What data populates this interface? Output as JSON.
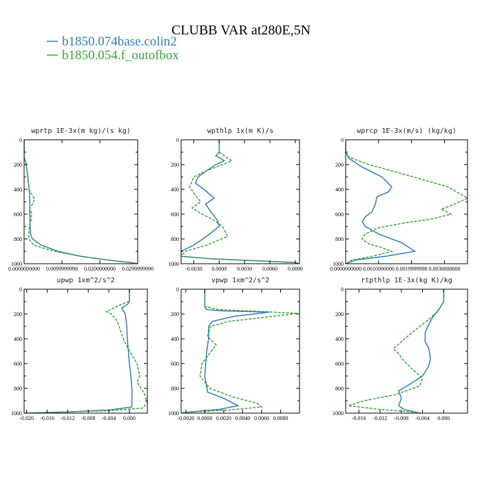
{
  "figure": {
    "title": "CLUBB VAR at280E,5N",
    "legend": [
      {
        "name": "b1850.074base.colin2",
        "color": "#2f7bbf"
      },
      {
        "name": "b1850.054.f_outofbox",
        "color": "#3aa23a"
      }
    ]
  },
  "chart_data": [
    {
      "type": "line",
      "title": "wprtp  1E-3x(m kg)/(s kg)",
      "xlim": [
        0,
        0.03
      ],
      "ylim": [
        1000,
        0
      ],
      "xticks": [
        0,
        0.01,
        0.02,
        0.03
      ],
      "xtick_labels": [
        "0.0000000000",
        "0.0099999998",
        "0.0200000000",
        "0.0299999990"
      ],
      "yticks": [
        0,
        200,
        400,
        600,
        800,
        1000
      ],
      "ytick_labels": [
        "0",
        "200",
        "400",
        "600",
        "800",
        "1000"
      ],
      "series": [
        {
          "name": "b1850.074base.colin2",
          "color": "#2f7bbf",
          "dash": "",
          "x": [
            0,
            0,
            0.0005,
            0.001,
            0.0012,
            0.0014,
            0.0015,
            0.0015,
            0.0016,
            0.0017,
            0.0022,
            0.0045,
            0.009,
            0.015,
            0.022,
            0.028,
            0.03
          ],
          "y": [
            0,
            140,
            190,
            300,
            360,
            420,
            500,
            600,
            700,
            760,
            800,
            850,
            900,
            940,
            970,
            990,
            1000
          ]
        },
        {
          "name": "b1850.054.f_outofbox",
          "color": "#3aa23a",
          "dash": "4,2",
          "x": [
            0,
            0,
            0.0004,
            0.0009,
            0.0013,
            0.0022,
            0.0028,
            0.0022,
            0.0015,
            0.002,
            0.0018,
            0.0014,
            0.0012,
            0.0013,
            0.0025,
            0.008,
            0.015,
            0.022,
            0.028,
            0.03
          ],
          "y": [
            0,
            140,
            180,
            280,
            400,
            450,
            480,
            520,
            550,
            600,
            650,
            700,
            760,
            800,
            850,
            900,
            940,
            970,
            990,
            1000
          ]
        }
      ]
    },
    {
      "type": "line",
      "title": "wpthlp  1x(m K)/s",
      "xlim": [
        -0.0045,
        0.0095
      ],
      "ylim": [
        1000,
        0
      ],
      "xticks": [
        -0.003,
        0,
        0.003,
        0.006,
        0.009
      ],
      "xtick_labels": [
        "-0.0030",
        "0.0000",
        "0.0030",
        "0.0060",
        "0.0090"
      ],
      "yticks": [
        0,
        200,
        400,
        600,
        800,
        1000
      ],
      "ytick_labels": [
        "0",
        "200",
        "400",
        "600",
        "800",
        "1000"
      ],
      "series": [
        {
          "name": "b1850.074base.colin2",
          "color": "#2f7bbf",
          "dash": "",
          "x": [
            0,
            0,
            -0.0004,
            0.0002,
            0.0006,
            -0.0004,
            -0.0015,
            -0.0025,
            -0.0028,
            -0.0018,
            -0.0006,
            -0.0016,
            -0.001,
            -0.0002,
            0,
            -0.0015,
            -0.003,
            -0.0045,
            -0.0045,
            -0.001,
            0.004,
            0.009,
            0.0095
          ],
          "y": [
            0,
            100,
            130,
            150,
            170,
            200,
            250,
            300,
            350,
            400,
            470,
            520,
            580,
            650,
            700,
            780,
            850,
            900,
            940,
            960,
            975,
            990,
            1000
          ]
        },
        {
          "name": "b1850.054.f_outofbox",
          "color": "#3aa23a",
          "dash": "4,2",
          "x": [
            0,
            0,
            0.0008,
            0.0015,
            0.0004,
            -0.0015,
            -0.003,
            -0.0035,
            -0.0028,
            -0.0022,
            -0.0032,
            -0.002,
            -0.0006,
            0.0004,
            0.001,
            -0.0015,
            -0.004,
            -0.0045,
            -0.001,
            0.004,
            0.009,
            0.0095
          ],
          "y": [
            0,
            100,
            140,
            170,
            200,
            250,
            300,
            380,
            450,
            500,
            550,
            600,
            650,
            700,
            780,
            850,
            900,
            940,
            960,
            975,
            990,
            1000
          ]
        }
      ]
    },
    {
      "type": "line",
      "title": "wprcp  1E-3x(m/s) (kg/kg)",
      "xlim": [
        0,
        0.0037
      ],
      "ylim": [
        1000,
        0
      ],
      "xticks": [
        0,
        0.001,
        0.002,
        0.003
      ],
      "xtick_labels": [
        "0.0000000000",
        "0.0010000000",
        "0.0019999998",
        "0.0030000000"
      ],
      "yticks": [
        0,
        200,
        400,
        600,
        800,
        1000
      ],
      "ytick_labels": [
        "0",
        "200",
        "400",
        "600",
        "800",
        "1000"
      ],
      "series": [
        {
          "name": "b1850.074base.colin2",
          "color": "#2f7bbf",
          "dash": "",
          "x": [
            0,
            0,
            0.0001,
            0.0005,
            0.0011,
            0.0014,
            0.0013,
            0.00095,
            0.0009,
            0.0008,
            0.0006,
            0.0005,
            0.0006,
            0.001,
            0.0017,
            0.0021,
            0.0012,
            0.0003,
            0
          ],
          "y": [
            0,
            100,
            150,
            220,
            300,
            380,
            420,
            460,
            520,
            580,
            620,
            660,
            700,
            760,
            830,
            900,
            940,
            970,
            1000
          ]
        },
        {
          "name": "b1850.054.f_outofbox",
          "color": "#3aa23a",
          "dash": "4,2",
          "x": [
            0,
            0,
            0.0001,
            0.0007,
            0.0018,
            0.0031,
            0.0037,
            0.0033,
            0.0029,
            0.0032,
            0.0026,
            0.0018,
            0.001,
            0.0006,
            0.0005,
            0.0007,
            0.0011,
            0.0014,
            0.0008,
            0.0002,
            0
          ],
          "y": [
            0,
            100,
            140,
            200,
            280,
            380,
            470,
            520,
            560,
            600,
            640,
            670,
            710,
            760,
            800,
            840,
            870,
            900,
            940,
            970,
            1000
          ]
        }
      ]
    },
    {
      "type": "line",
      "title": "upwp  1xm^2/s^2",
      "xlim": [
        -0.0205,
        0.0035
      ],
      "ylim": [
        1000,
        0
      ],
      "xticks": [
        -0.02,
        -0.016,
        -0.012,
        -0.008,
        -0.004,
        0
      ],
      "xtick_labels": [
        "-0.020",
        "-0.016",
        "-0.012",
        "-0.008",
        "-0.004",
        "0.000"
      ],
      "yticks": [
        0,
        200,
        400,
        600,
        800,
        1000
      ],
      "ytick_labels": [
        "0",
        "200",
        "400",
        "600",
        "800",
        "1000"
      ],
      "series": [
        {
          "name": "b1850.074base.colin2",
          "color": "#2f7bbf",
          "dash": "",
          "x": [
            0,
            0,
            -0.0003,
            -0.0015,
            -0.0008,
            -0.0005,
            -0.0004,
            -0.0002,
            0,
            0.0003,
            0.0005,
            0.0005,
            -0.004,
            -0.012,
            -0.018,
            -0.0205
          ],
          "y": [
            0,
            100,
            120,
            150,
            200,
            300,
            400,
            500,
            600,
            700,
            800,
            950,
            975,
            990,
            997,
            1000
          ]
        },
        {
          "name": "b1850.054.f_outofbox",
          "color": "#3aa23a",
          "dash": "4,2",
          "x": [
            0,
            0,
            -0.0015,
            -0.0045,
            -0.0035,
            -0.0025,
            -0.002,
            -0.0012,
            0,
            0.0015,
            0.002,
            0.0015,
            0.003,
            0.0035,
            0.0025,
            -0.004,
            -0.012,
            -0.018,
            -0.0205
          ],
          "y": [
            0,
            100,
            120,
            180,
            200,
            250,
            300,
            400,
            500,
            600,
            700,
            750,
            850,
            920,
            960,
            980,
            990,
            997,
            1000
          ]
        }
      ]
    },
    {
      "type": "line",
      "title": "vpwp  1xm^2/s^2",
      "xlim": [
        -0.0025,
        0.01
      ],
      "ylim": [
        1000,
        0
      ],
      "xticks": [
        -0.002,
        0,
        0.002,
        0.004,
        0.006,
        0.008
      ],
      "xtick_labels": [
        "-0.0020",
        "0.0000",
        "0.0020",
        "0.0040",
        "0.0060",
        "0.0080"
      ],
      "yticks": [
        0,
        200,
        400,
        600,
        800,
        1000
      ],
      "ytick_labels": [
        "0",
        "200",
        "400",
        "600",
        "800",
        "1000"
      ],
      "series": [
        {
          "name": "b1850.074base.colin2",
          "color": "#2f7bbf",
          "dash": "",
          "x": [
            0,
            0,
            0.0002,
            0.002,
            0.0068,
            0.003,
            0.0008,
            0.0004,
            0.0004,
            0.0002,
            0,
            0.0003,
            0.002,
            0.0035,
            0.0015,
            -0.0015,
            -0.0025
          ],
          "y": [
            0,
            140,
            165,
            175,
            185,
            220,
            260,
            300,
            400,
            500,
            700,
            830,
            880,
            940,
            970,
            990,
            1000
          ]
        },
        {
          "name": "b1850.054.f_outofbox",
          "color": "#3aa23a",
          "dash": "4,2",
          "x": [
            0,
            0,
            0.0015,
            0.006,
            0.0098,
            0.006,
            0.0025,
            0.0006,
            0.0003,
            0.0012,
            0.0005,
            -0.0003,
            -0.0005,
            0.0005,
            0.003,
            0.0055,
            0.006,
            0.0025,
            -0.0015,
            -0.0025
          ],
          "y": [
            0,
            140,
            165,
            180,
            195,
            230,
            260,
            300,
            380,
            450,
            520,
            600,
            700,
            800,
            870,
            920,
            950,
            975,
            990,
            1000
          ]
        }
      ]
    },
    {
      "type": "line",
      "title": "rtpthlp  1E-3x(kg K)/kg",
      "xlim": [
        -0.0185,
        0.0045
      ],
      "ylim": [
        1000,
        0
      ],
      "xticks": [
        -0.016,
        -0.012,
        -0.008,
        -0.004,
        0
      ],
      "xtick_labels": [
        "-0.016",
        "-0.012",
        "-0.008",
        "-0.004",
        "0.000"
      ],
      "yticks": [
        0,
        200,
        400,
        600,
        800,
        1000
      ],
      "ytick_labels": [
        "0",
        "200",
        "400",
        "600",
        "800",
        "1000"
      ],
      "series": [
        {
          "name": "b1850.074base.colin2",
          "color": "#2f7bbf",
          "dash": "",
          "x": [
            0,
            0,
            -0.001,
            -0.002,
            -0.003,
            -0.0035,
            -0.0035,
            -0.0028,
            -0.0025,
            -0.0028,
            -0.004,
            -0.0065,
            -0.0085,
            -0.008,
            -0.0085,
            -0.0075,
            -0.0055,
            -0.0045
          ],
          "y": [
            0,
            100,
            170,
            220,
            300,
            350,
            420,
            480,
            560,
            620,
            700,
            770,
            820,
            880,
            940,
            970,
            990,
            1000
          ]
        },
        {
          "name": "b1850.054.f_outofbox",
          "color": "#3aa23a",
          "dash": "4,2",
          "x": [
            0,
            0,
            -0.0012,
            -0.003,
            -0.006,
            -0.0095,
            -0.0085,
            -0.0075,
            -0.0058,
            -0.004,
            -0.0045,
            -0.009,
            -0.015,
            -0.018,
            -0.012,
            -0.006,
            -0.0045
          ],
          "y": [
            0,
            100,
            180,
            250,
            350,
            480,
            520,
            580,
            650,
            720,
            780,
            850,
            900,
            940,
            970,
            990,
            1000
          ]
        }
      ]
    }
  ]
}
